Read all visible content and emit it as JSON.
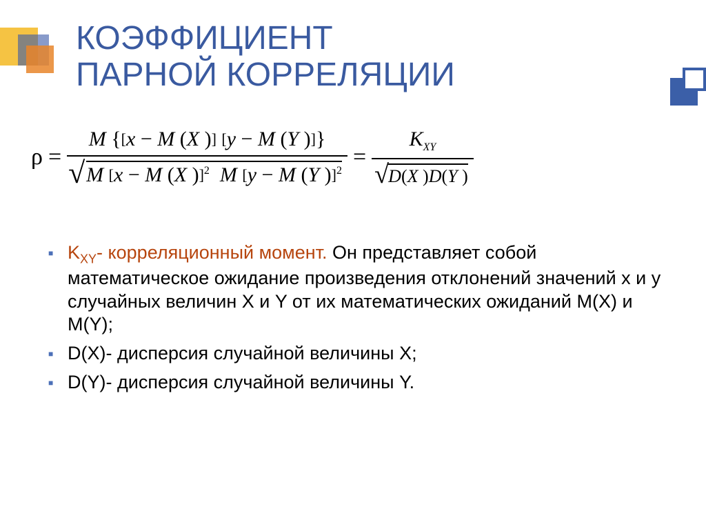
{
  "title_line1": "КОЭФФИЦИЕНТ",
  "title_line2": "ПАРНОЙ КОРРЕЛЯЦИИ",
  "formula": {
    "lhs_symbol": "ρ",
    "eq": "=",
    "frac1": {
      "num_M": "M",
      "num_lb": "{",
      "num_b1l": "[",
      "num_t1a": "x",
      "num_minus": "−",
      "num_t1b": "M",
      "num_p1l": "(",
      "num_t1c": "X",
      "num_p1r": ")",
      "num_b1r": "]",
      "num_b2l": "[",
      "num_t2a": "y",
      "num_t2b": "M",
      "num_p2l": "(",
      "num_t2c": "Y",
      "num_p2r": ")",
      "num_b2r": "]",
      "num_rb": "}",
      "den_M1": "M",
      "den_b1l": "[",
      "den_t1a": "x",
      "den_t1b": "M",
      "den_p1l": "(",
      "den_t1c": "X",
      "den_p1r": ")",
      "den_b1r": "]",
      "den_sq1": "2",
      "den_M2": "M",
      "den_b2l": "[",
      "den_t2a": "y",
      "den_t2b": "M",
      "den_p2l": "(",
      "den_t2c": "Y",
      "den_p2r": ")",
      "den_b2r": "]",
      "den_sq2": "2"
    },
    "frac2": {
      "num_K": "K",
      "num_sub": "XY",
      "den_D1": "D",
      "den_p1l": "(",
      "den_X": "X",
      "den_p1r": ")",
      "den_D2": "D",
      "den_p2l": "(",
      "den_Y": "Y",
      "den_p2r": ")"
    }
  },
  "bullets": {
    "b1_k": "K",
    "b1_sub": "XY",
    "b1_dash": "-",
    "b1_colored": "  корреляционный момент.",
    "b1_rest": " Он представляет собой математическое ожидание произведения отклонений значений x и y случайных величин X и Y от их математических ожиданий  M(X) и M(Y);",
    "b2": "D(X)- дисперсия случайной величины X;",
    "b3": "D(Y)- дисперсия случайной величины Y."
  },
  "colors": {
    "title": "#3a5aa0",
    "bullet": "#4c70b8",
    "colored_text": "#b7460f",
    "deco_yellow": "#f5c343",
    "deco_orange": "#e8852a",
    "deco_blue": "#3859a8",
    "deco_blue2": "#3b5fa8"
  }
}
